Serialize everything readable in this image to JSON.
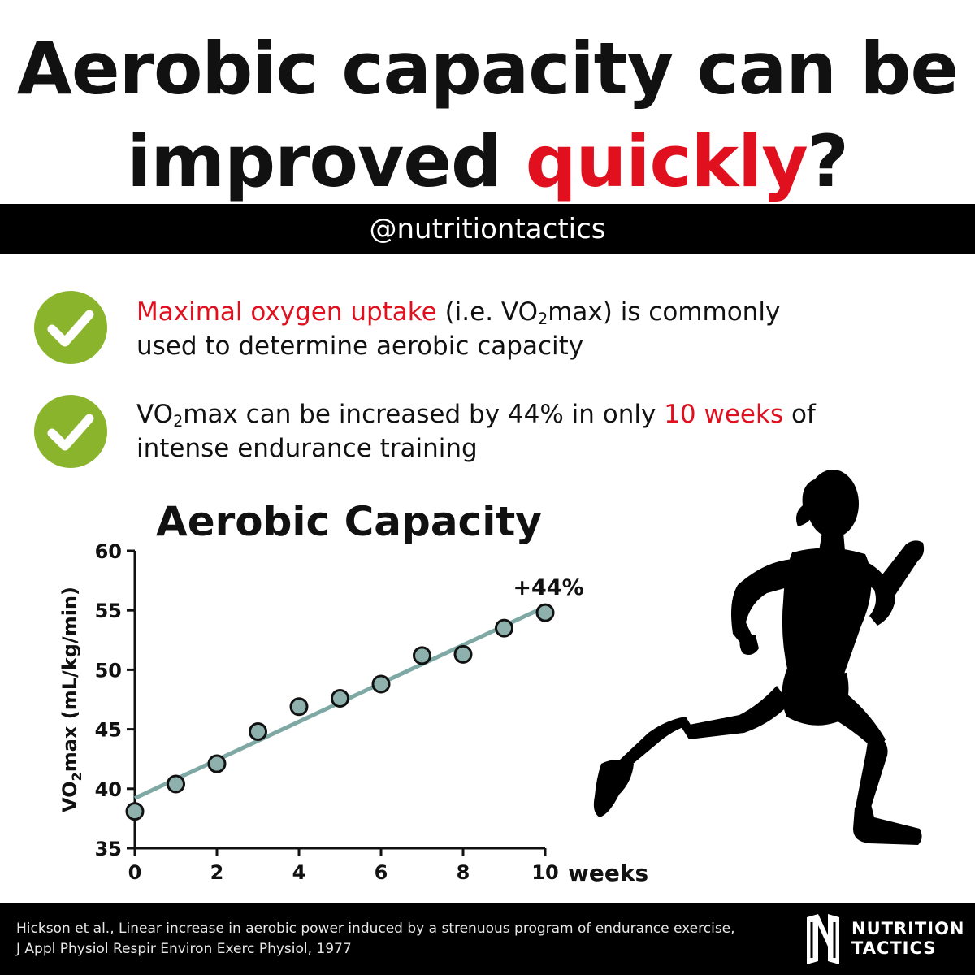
{
  "header": {
    "title_line1": "Aerobic capacity can be",
    "title_line2_start": "improved ",
    "title_line2_accent": "quickly",
    "title_line2_end": "?",
    "accent_color": "#e0101e"
  },
  "handle": "@nutritiontactics",
  "points": [
    {
      "icon": "check-circle-icon",
      "highlight": "Maximal oxygen uptake",
      "text_a": " (i.e. VO",
      "sub": "2",
      "text_b": "max) is commonly",
      "line2": "used to determine aerobic capacity"
    },
    {
      "icon": "check-circle-icon",
      "text_a": "VO",
      "sub": "2",
      "text_b": "max can be increased by 44% in only ",
      "highlight": "10 weeks",
      "text_c": " of",
      "line2": "intense endurance training"
    }
  ],
  "chart_data": {
    "type": "scatter",
    "title": "Aerobic Capacity",
    "xlabel": "weeks",
    "ylabel_main": "VO",
    "ylabel_sub": "2",
    "ylabel_rest": "max (mL/kg/min)",
    "xlim": [
      0,
      10
    ],
    "ylim": [
      35,
      60
    ],
    "xticks": [
      0,
      2,
      4,
      6,
      8,
      10
    ],
    "yticks": [
      35,
      40,
      45,
      50,
      55,
      60
    ],
    "x": [
      0,
      1,
      2,
      3,
      4,
      5,
      6,
      7,
      8,
      9,
      10
    ],
    "y": [
      38.1,
      40.4,
      42.1,
      44.8,
      46.9,
      47.6,
      48.8,
      51.2,
      51.3,
      53.5,
      54.8
    ],
    "trendline": {
      "x": [
        0,
        10
      ],
      "y": [
        39.2,
        55.3
      ]
    },
    "annotation": "+44%",
    "grid": false,
    "marker_color": "#8fb1ad",
    "line_color": "#7ea8a4"
  },
  "footer": {
    "reference_line1": "Hickson et al., Linear increase in aerobic power induced by a strenuous program of endurance exercise,",
    "reference_line2": "J Appl Physiol Respir Environ Exerc Physiol, 1977",
    "logo_line1": "NUTRITION",
    "logo_line2": "TACTICS",
    "logo_icon": "nt-monogram-icon"
  },
  "figure": {
    "icon": "runner-silhouette-icon"
  },
  "colors": {
    "check_green": "#8ab42c",
    "bar_black": "#000000"
  }
}
